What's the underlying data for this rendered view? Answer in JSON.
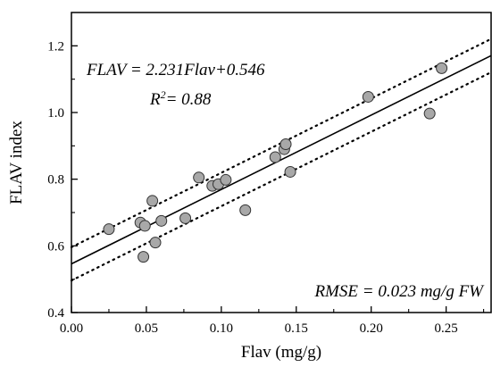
{
  "chart_data": {
    "type": "scatter",
    "xlabel": "Flav (mg/g)",
    "ylabel": "FLAV index",
    "xlim": [
      0.0,
      0.28
    ],
    "ylim": [
      0.4,
      1.3
    ],
    "xticks": [
      0.0,
      0.05,
      0.1,
      0.15,
      0.2,
      0.25
    ],
    "xtick_labels": [
      "0.00",
      "0.05",
      "0.10",
      "0.15",
      "0.20",
      "0.25"
    ],
    "yticks": [
      0.4,
      0.6,
      0.8,
      1.0,
      1.2
    ],
    "ytick_labels": [
      "0.4",
      "0.6",
      "0.8",
      "1.0",
      "1.2"
    ],
    "grid": false,
    "series": [
      {
        "marker": "circle",
        "color": "#a8a8a8",
        "x": [
          0.025,
          0.046,
          0.048,
          0.049,
          0.054,
          0.056,
          0.06,
          0.076,
          0.085,
          0.094,
          0.098,
          0.103,
          0.116,
          0.136,
          0.142,
          0.143,
          0.146,
          0.198,
          0.239,
          0.247
        ],
        "y": [
          0.65,
          0.67,
          0.567,
          0.66,
          0.735,
          0.61,
          0.675,
          0.683,
          0.805,
          0.78,
          0.785,
          0.798,
          0.707,
          0.866,
          0.89,
          0.905,
          0.822,
          1.047,
          0.997,
          1.133
        ]
      }
    ],
    "fit_line": {
      "slope": 2.231,
      "intercept": 0.546,
      "style": "solid",
      "color": "#000000"
    },
    "confidence_band": {
      "offset": 0.05,
      "style": "dotted",
      "color": "#000000"
    },
    "annotations": {
      "equation": "FLAV = 2.231Flav+0.546",
      "r2_prefix": "R",
      "r2_exp": "2",
      "r2_value": "= 0.88",
      "rmse": "RMSE = 0.023 mg/g FW"
    }
  }
}
